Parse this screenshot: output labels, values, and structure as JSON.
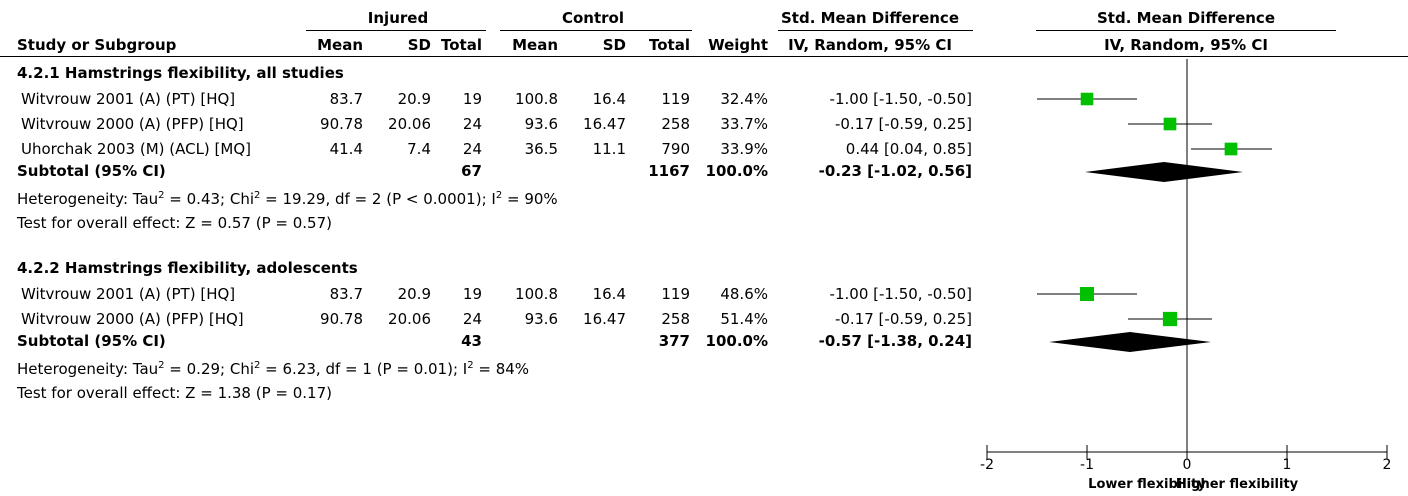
{
  "header": {
    "group1": "Injured",
    "group2": "Control",
    "effect_title": "Std. Mean Difference",
    "effect_subtitle": "IV, Random, 95% CI",
    "plot_title": "Std. Mean Difference",
    "plot_subtitle": "IV, Random, 95% CI",
    "study_col": "Study or Subgroup",
    "mean": "Mean",
    "sd": "SD",
    "total": "Total",
    "weight": "Weight"
  },
  "subgroups": [
    {
      "title": "4.2.1 Hamstrings flexibility, all studies",
      "studies": [
        {
          "name": "Witvrouw 2001 (A) (PT) [HQ]",
          "m1": "83.7",
          "sd1": "20.9",
          "n1": "19",
          "m2": "100.8",
          "sd2": "16.4",
          "n2": "119",
          "weight": "32.4%",
          "ci": "-1.00 [-1.50, -0.50]"
        },
        {
          "name": "Witvrouw 2000 (A) (PFP) [HQ]",
          "m1": "90.78",
          "sd1": "20.06",
          "n1": "24",
          "m2": "93.6",
          "sd2": "16.47",
          "n2": "258",
          "weight": "33.7%",
          "ci": "-0.17 [-0.59, 0.25]"
        },
        {
          "name": "Uhorchak 2003 (M) (ACL) [MQ]",
          "m1": "41.4",
          "sd1": "7.4",
          "n1": "24",
          "m2": "36.5",
          "sd2": "11.1",
          "n2": "790",
          "weight": "33.9%",
          "ci": "0.44 [0.04, 0.85]"
        }
      ],
      "subtotal": {
        "label": "Subtotal (95% CI)",
        "n1": "67",
        "n2": "1167",
        "weight": "100.0%",
        "ci": "-0.23 [-1.02, 0.56]"
      },
      "heterogeneity": {
        "prefix": "Heterogeneity: Tau",
        "tau2": "0.43",
        "chi": "19.29",
        "df": "2",
        "p": "P < 0.0001",
        "i2": "90%"
      },
      "overall": "Test for overall effect: Z = 0.57 (P = 0.57)"
    },
    {
      "title": "4.2.2 Hamstrings flexibility, adolescents",
      "studies": [
        {
          "name": "Witvrouw 2001 (A) (PT) [HQ]",
          "m1": "83.7",
          "sd1": "20.9",
          "n1": "19",
          "m2": "100.8",
          "sd2": "16.4",
          "n2": "119",
          "weight": "48.6%",
          "ci": "-1.00 [-1.50, -0.50]"
        },
        {
          "name": "Witvrouw 2000 (A) (PFP) [HQ]",
          "m1": "90.78",
          "sd1": "20.06",
          "n1": "24",
          "m2": "93.6",
          "sd2": "16.47",
          "n2": "258",
          "weight": "51.4%",
          "ci": "-0.17 [-0.59, 0.25]"
        }
      ],
      "subtotal": {
        "label": "Subtotal (95% CI)",
        "n1": "43",
        "n2": "377",
        "weight": "100.0%",
        "ci": "-0.57 [-1.38, 0.24]"
      },
      "heterogeneity": {
        "prefix": "Heterogeneity: Tau",
        "tau2": "0.29",
        "chi": "6.23",
        "df": "1",
        "p": "P = 0.01",
        "i2": "84%"
      },
      "overall": "Test for overall effect: Z = 1.38 (P = 0.17)"
    }
  ],
  "chart_data": {
    "type": "forest",
    "xlim": [
      -2,
      2
    ],
    "ticks": [
      -2,
      -1,
      0,
      1,
      2
    ],
    "tick_labels": [
      "-2",
      "-1",
      "0",
      "1",
      "2"
    ],
    "xlabel_left": "Lower flexibility",
    "xlabel_right": "Higher flexibility",
    "study_marker_color": "#00c000",
    "diamond_color": "#000000",
    "rows": [
      {
        "kind": "study",
        "est": -1.0,
        "lo": -1.5,
        "hi": -0.5,
        "weight": 32.4
      },
      {
        "kind": "study",
        "est": -0.17,
        "lo": -0.59,
        "hi": 0.25,
        "weight": 33.7
      },
      {
        "kind": "study",
        "est": 0.44,
        "lo": 0.04,
        "hi": 0.85,
        "weight": 33.9
      },
      {
        "kind": "diamond",
        "est": -0.23,
        "lo": -1.02,
        "hi": 0.56
      },
      {
        "kind": "study",
        "est": -1.0,
        "lo": -1.5,
        "hi": -0.5,
        "weight": 48.6
      },
      {
        "kind": "study",
        "est": -0.17,
        "lo": -0.59,
        "hi": 0.25,
        "weight": 51.4
      },
      {
        "kind": "diamond",
        "est": -0.57,
        "lo": -1.38,
        "hi": 0.24
      }
    ]
  }
}
